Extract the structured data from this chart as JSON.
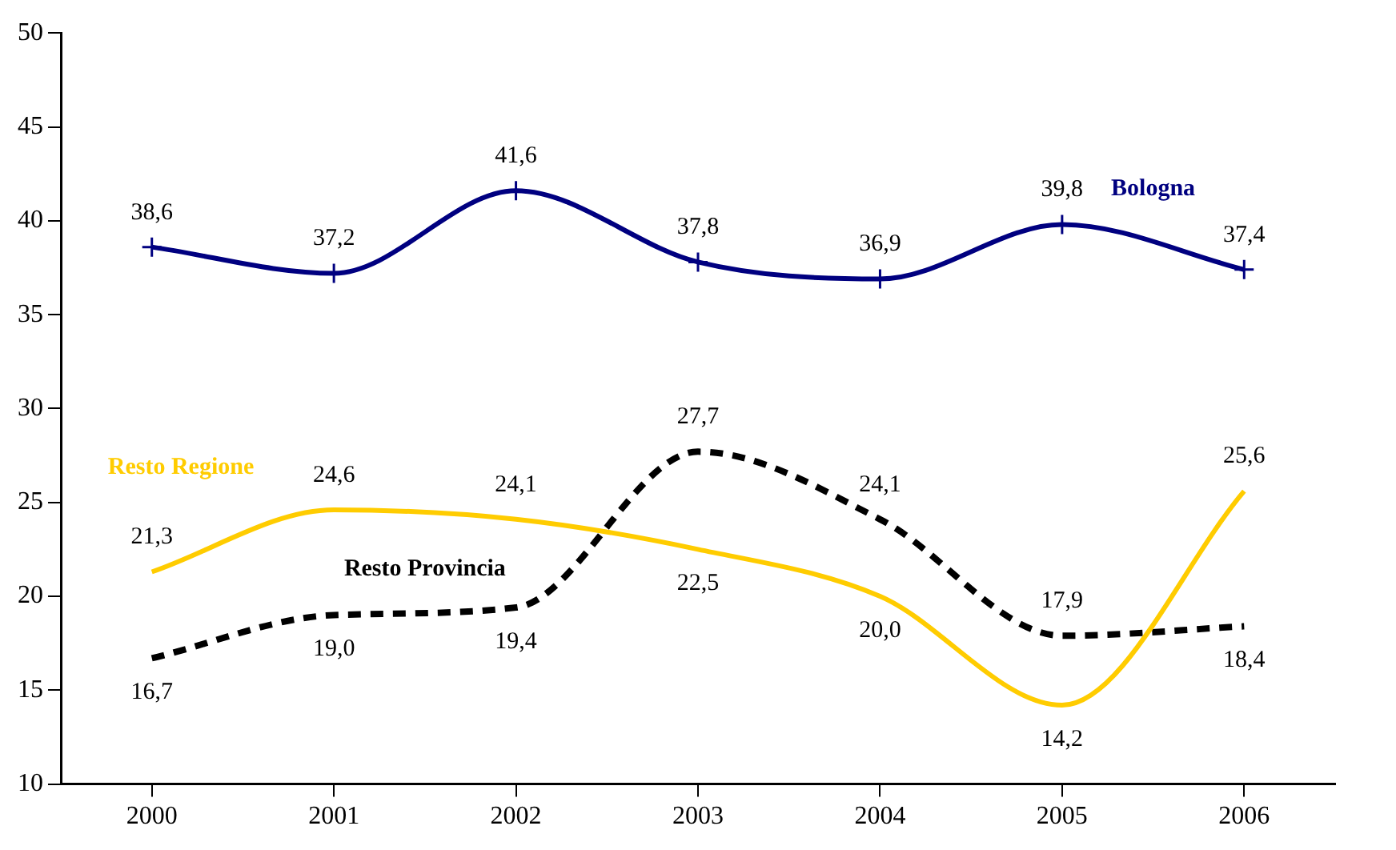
{
  "chart_data": {
    "type": "line",
    "categories": [
      "2000",
      "2001",
      "2002",
      "2003",
      "2004",
      "2005",
      "2006"
    ],
    "ylim": [
      10,
      50
    ],
    "yticks": [
      10,
      15,
      20,
      25,
      30,
      35,
      40,
      45,
      50
    ],
    "grid": false,
    "legend": false,
    "series": [
      {
        "name": "Bologna",
        "color": "#000080",
        "marker": "cross",
        "line_style": "solid",
        "values": [
          38.6,
          37.2,
          41.6,
          37.8,
          36.9,
          39.8,
          37.4
        ],
        "value_labels": [
          "38,6",
          "37,2",
          "41,6",
          "37,8",
          "36,9",
          "39,8",
          "37,4"
        ]
      },
      {
        "name": "Resto Regione",
        "color": "#ffcc00",
        "marker": "none",
        "line_style": "solid",
        "values": [
          21.3,
          24.6,
          24.1,
          22.5,
          20.0,
          14.2,
          25.6
        ],
        "value_labels": [
          "21,3",
          "24,6",
          "24,1",
          "22,5",
          "20,0",
          "14,2",
          "25,6"
        ]
      },
      {
        "name": "Resto Provincia",
        "color": "#000000",
        "marker": "none",
        "line_style": "dashed",
        "values": [
          16.7,
          19.0,
          19.4,
          27.7,
          24.1,
          17.9,
          18.4
        ],
        "value_labels": [
          "16,7",
          "19,0",
          "19,4",
          "27,7",
          "24,1",
          "17,9",
          "18,4"
        ]
      }
    ]
  }
}
